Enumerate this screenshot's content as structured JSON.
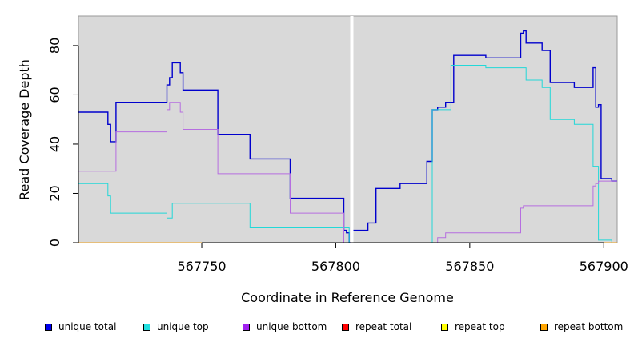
{
  "chart_data": {
    "type": "line",
    "title": "",
    "xlabel": "Coordinate in Reference Genome",
    "ylabel": "Read Coverage Depth",
    "xlim": [
      567704,
      567905
    ],
    "ylim": [
      0,
      92
    ],
    "x_ticks": [
      567750,
      567800,
      567850,
      567900
    ],
    "y_ticks": [
      0,
      20,
      40,
      60,
      80
    ],
    "gap_marker_x": 567806,
    "grid": false,
    "background": "#d9d9d9",
    "legend_position": "bottom",
    "series": [
      {
        "name": "unique total",
        "color": "#0000cd",
        "points": [
          [
            567704,
            53
          ],
          [
            567715,
            53
          ],
          [
            567715,
            48
          ],
          [
            567716,
            48
          ],
          [
            567716,
            41
          ],
          [
            567718,
            41
          ],
          [
            567718,
            57
          ],
          [
            567737,
            57
          ],
          [
            567737,
            64
          ],
          [
            567738,
            64
          ],
          [
            567738,
            67
          ],
          [
            567739,
            67
          ],
          [
            567739,
            73
          ],
          [
            567742,
            73
          ],
          [
            567742,
            69
          ],
          [
            567743,
            69
          ],
          [
            567743,
            62
          ],
          [
            567756,
            62
          ],
          [
            567756,
            44
          ],
          [
            567768,
            44
          ],
          [
            567768,
            34
          ],
          [
            567783,
            34
          ],
          [
            567783,
            18
          ],
          [
            567803,
            18
          ],
          [
            567803,
            5
          ],
          [
            567804,
            5
          ],
          [
            567804,
            4
          ],
          [
            567805,
            4
          ],
          [
            567805,
            0
          ],
          [
            567806,
            0
          ]
        ]
      },
      {
        "name": "unique total",
        "color": "#0000cd",
        "points": [
          [
            567806,
            0
          ],
          [
            567806,
            5
          ],
          [
            567812,
            5
          ],
          [
            567812,
            8
          ],
          [
            567815,
            8
          ],
          [
            567815,
            22
          ],
          [
            567824,
            22
          ],
          [
            567824,
            24
          ],
          [
            567834,
            24
          ],
          [
            567834,
            33
          ],
          [
            567836,
            33
          ],
          [
            567836,
            54
          ],
          [
            567838,
            54
          ],
          [
            567838,
            55
          ],
          [
            567841,
            55
          ],
          [
            567841,
            57
          ],
          [
            567844,
            57
          ],
          [
            567844,
            76
          ],
          [
            567856,
            76
          ],
          [
            567856,
            75
          ],
          [
            567869,
            75
          ],
          [
            567869,
            85
          ],
          [
            567870,
            85
          ],
          [
            567870,
            86
          ],
          [
            567871,
            86
          ],
          [
            567871,
            81
          ],
          [
            567877,
            81
          ],
          [
            567877,
            78
          ],
          [
            567880,
            78
          ],
          [
            567880,
            65
          ],
          [
            567889,
            65
          ],
          [
            567889,
            63
          ],
          [
            567896,
            63
          ],
          [
            567896,
            71
          ],
          [
            567897,
            71
          ],
          [
            567897,
            55
          ],
          [
            567898,
            55
          ],
          [
            567898,
            56
          ],
          [
            567899,
            56
          ],
          [
            567899,
            26
          ],
          [
            567903,
            26
          ],
          [
            567903,
            25
          ],
          [
            567905,
            25
          ]
        ]
      },
      {
        "name": "unique top",
        "color": "#22d8d8",
        "points": [
          [
            567704,
            24
          ],
          [
            567715,
            24
          ],
          [
            567715,
            19
          ],
          [
            567716,
            19
          ],
          [
            567716,
            12
          ],
          [
            567737,
            12
          ],
          [
            567737,
            10
          ],
          [
            567739,
            10
          ],
          [
            567739,
            16
          ],
          [
            567768,
            16
          ],
          [
            567768,
            6
          ],
          [
            567805,
            6
          ],
          [
            567805,
            0
          ],
          [
            567806,
            0
          ]
        ]
      },
      {
        "name": "unique top",
        "color": "#22d8d8",
        "points": [
          [
            567806,
            0
          ],
          [
            567836,
            0
          ],
          [
            567836,
            54
          ],
          [
            567843,
            54
          ],
          [
            567843,
            72
          ],
          [
            567856,
            72
          ],
          [
            567856,
            71
          ],
          [
            567871,
            71
          ],
          [
            567871,
            66
          ],
          [
            567877,
            66
          ],
          [
            567877,
            63
          ],
          [
            567880,
            63
          ],
          [
            567880,
            50
          ],
          [
            567889,
            50
          ],
          [
            567889,
            48
          ],
          [
            567896,
            48
          ],
          [
            567896,
            31
          ],
          [
            567898,
            31
          ],
          [
            567898,
            1
          ],
          [
            567903,
            1
          ],
          [
            567903,
            0
          ],
          [
            567905,
            0
          ]
        ]
      },
      {
        "name": "unique bottom",
        "color": "#b66ee0",
        "points": [
          [
            567704,
            29
          ],
          [
            567718,
            29
          ],
          [
            567718,
            45
          ],
          [
            567737,
            45
          ],
          [
            567737,
            54
          ],
          [
            567738,
            54
          ],
          [
            567738,
            57
          ],
          [
            567742,
            57
          ],
          [
            567742,
            53
          ],
          [
            567743,
            53
          ],
          [
            567743,
            46
          ],
          [
            567756,
            46
          ],
          [
            567756,
            28
          ],
          [
            567783,
            28
          ],
          [
            567783,
            12
          ],
          [
            567803,
            12
          ],
          [
            567803,
            0
          ],
          [
            567806,
            0
          ]
        ]
      },
      {
        "name": "unique bottom",
        "color": "#b66ee0",
        "points": [
          [
            567806,
            0
          ],
          [
            567838,
            0
          ],
          [
            567838,
            2
          ],
          [
            567841,
            2
          ],
          [
            567841,
            4
          ],
          [
            567869,
            4
          ],
          [
            567869,
            14
          ],
          [
            567870,
            14
          ],
          [
            567870,
            15
          ],
          [
            567896,
            15
          ],
          [
            567896,
            23
          ],
          [
            567897,
            23
          ],
          [
            567897,
            24
          ],
          [
            567898,
            24
          ],
          [
            567898,
            25
          ],
          [
            567905,
            25
          ]
        ]
      },
      {
        "name": "repeat bottom",
        "color": "#f4a21a",
        "points": [
          [
            567704,
            0
          ],
          [
            567805,
            0
          ]
        ]
      },
      {
        "name": "repeat bottom",
        "color": "#f4a21a",
        "points": [
          [
            567806,
            0
          ],
          [
            567905,
            0
          ]
        ]
      }
    ]
  },
  "legend": [
    {
      "label": "unique total",
      "color": "#0000ee"
    },
    {
      "label": "unique top",
      "color": "#22e0e0"
    },
    {
      "label": "unique bottom",
      "color": "#a020f0"
    },
    {
      "label": "repeat total",
      "color": "#ff0000"
    },
    {
      "label": "repeat top",
      "color": "#ffff00"
    },
    {
      "label": "repeat bottom",
      "color": "#ffa500"
    }
  ]
}
